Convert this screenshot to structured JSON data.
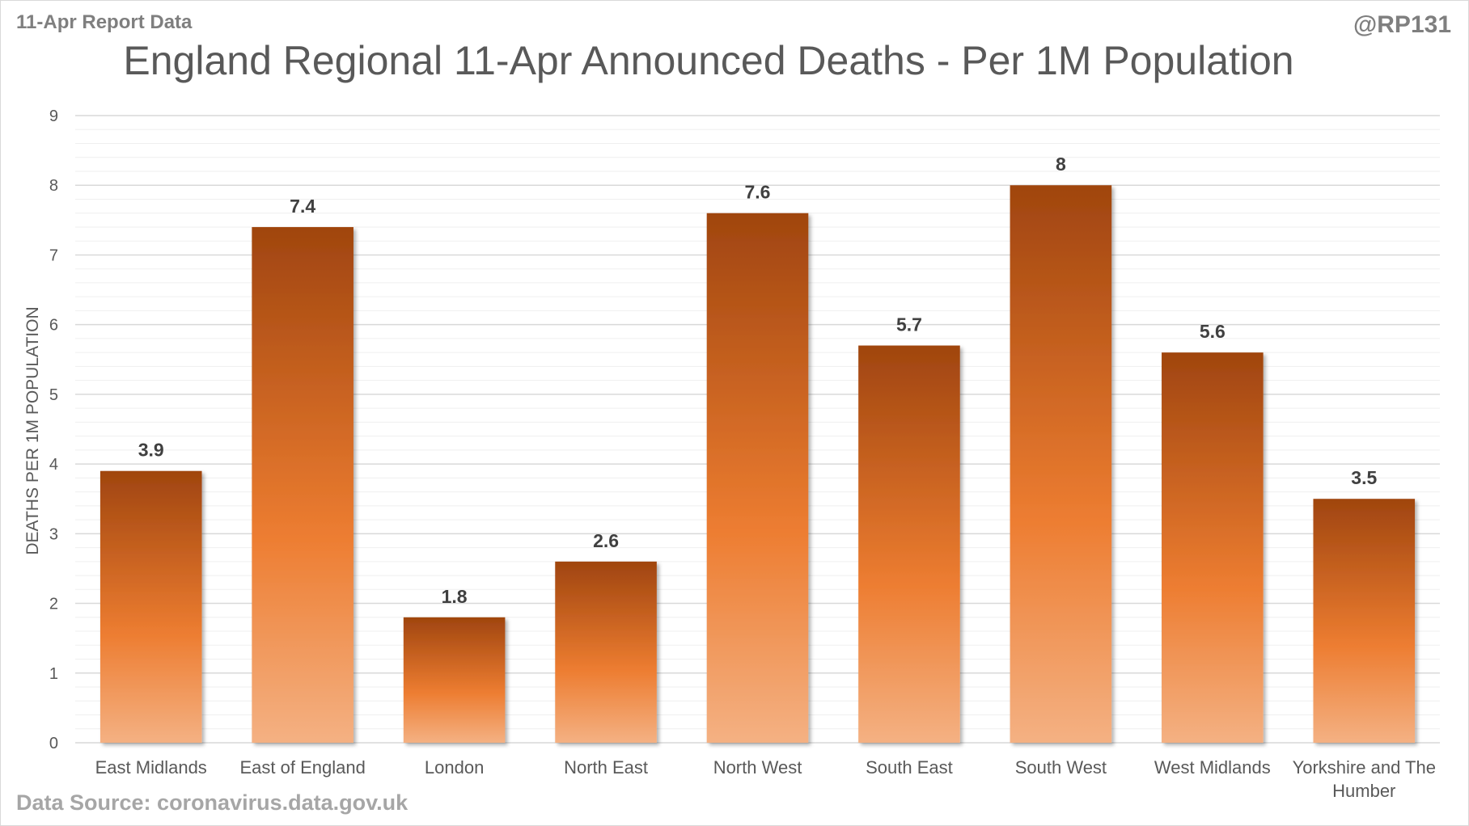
{
  "header": {
    "left_note": "11-Apr Report Data",
    "right_note": "@RP131"
  },
  "footer": {
    "source": "Data Source: coronavirus.data.gov.uk"
  },
  "colors": {
    "bar_dark": "#A0450F",
    "bar_mid": "#ED7D31",
    "bar_light": "#F4B183",
    "grid": "#d9d9d9"
  },
  "chart_data": {
    "type": "bar",
    "title": "England Regional 11-Apr Announced Deaths - Per 1M Population",
    "xlabel": "",
    "ylabel": "DEATHS PER 1M POPULATION",
    "categories": [
      "East Midlands",
      "East of England",
      "London",
      "North East",
      "North West",
      "South East",
      "South West",
      "West Midlands",
      "Yorkshire and The Humber"
    ],
    "values": [
      3.9,
      7.4,
      1.8,
      2.6,
      7.6,
      5.7,
      8,
      5.6,
      3.5
    ],
    "data_labels": [
      "3.9",
      "7.4",
      "1.8",
      "2.6",
      "7.6",
      "5.7",
      "8",
      "5.6",
      "3.5"
    ],
    "ylim": [
      0,
      9
    ],
    "yticks": [
      0,
      1,
      2,
      3,
      4,
      5,
      6,
      7,
      8,
      9
    ],
    "grid": true,
    "legend": "none"
  }
}
